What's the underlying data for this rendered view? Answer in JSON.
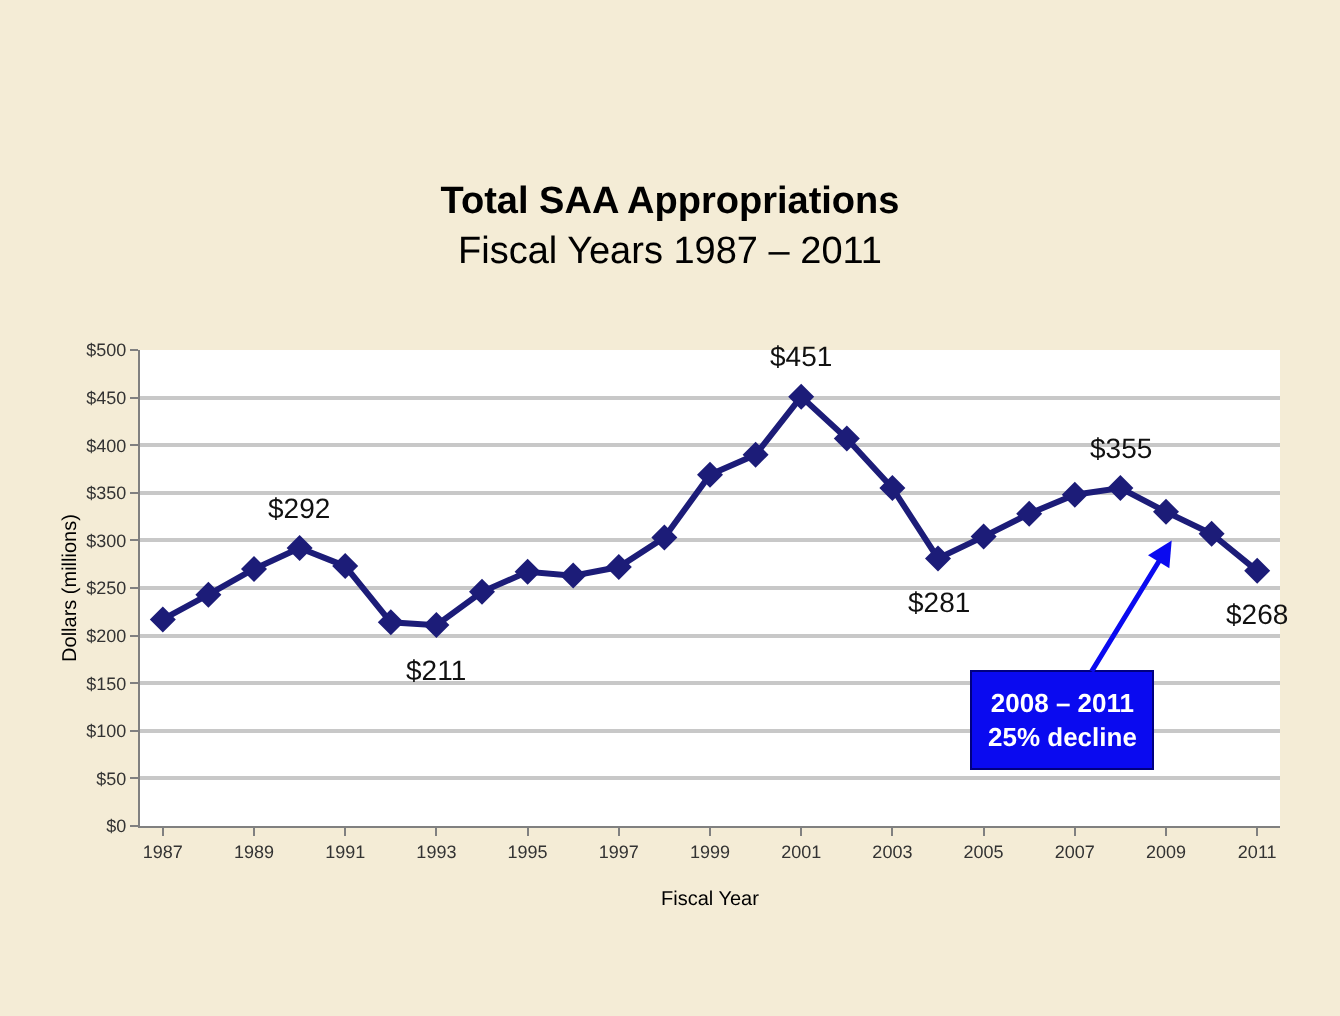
{
  "chart_data": {
    "type": "line",
    "title": "Total SAA Appropriations",
    "subtitle": "Fiscal Years 1987 – 2011",
    "xlabel": "Fiscal Year",
    "ylabel": "Dollars (millions)",
    "x": [
      1987,
      1988,
      1989,
      1990,
      1991,
      1992,
      1993,
      1994,
      1995,
      1996,
      1997,
      1998,
      1999,
      2000,
      2001,
      2002,
      2003,
      2004,
      2005,
      2006,
      2007,
      2008,
      2009,
      2010,
      2011
    ],
    "series": [
      {
        "color": "#1c1c78",
        "values": [
          217,
          243,
          270,
          292,
          273,
          214,
          211,
          246,
          267,
          263,
          272,
          303,
          369,
          390,
          451,
          407,
          355,
          281,
          304,
          328,
          348,
          355,
          330,
          307,
          268
        ]
      }
    ],
    "xlim": [
      1986.5,
      2011.5
    ],
    "xticks": [
      1987,
      1989,
      1991,
      1993,
      1995,
      1997,
      1999,
      2001,
      2003,
      2005,
      2007,
      2009,
      2011
    ],
    "ylim": [
      0,
      500
    ],
    "yticks": [
      {
        "value": 0,
        "label": "$0"
      },
      {
        "value": 50,
        "label": "$50"
      },
      {
        "value": 100,
        "label": "$100"
      },
      {
        "value": 150,
        "label": "$150"
      },
      {
        "value": 200,
        "label": "$200"
      },
      {
        "value": 250,
        "label": "$250"
      },
      {
        "value": 300,
        "label": "$300"
      },
      {
        "value": 350,
        "label": "$350"
      },
      {
        "value": 400,
        "label": "$400"
      },
      {
        "value": 450,
        "label": "$450"
      },
      {
        "value": 500,
        "label": "$500"
      }
    ],
    "annotations": [
      {
        "text": "$292",
        "x": 1990,
        "y": 292
      },
      {
        "text": "$211",
        "x": 1993,
        "y": 211
      },
      {
        "text": "$451",
        "x": 2001,
        "y": 451
      },
      {
        "text": "$281",
        "x": 2004,
        "y": 281
      },
      {
        "text": "$355",
        "x": 2008,
        "y": 355
      },
      {
        "text": "$268",
        "x": 2011,
        "y": 268
      },
      "2008 – 2011\n25% decline"
    ],
    "grid": "y",
    "marker": "diamond",
    "line_style": "solid",
    "legend": false
  }
}
